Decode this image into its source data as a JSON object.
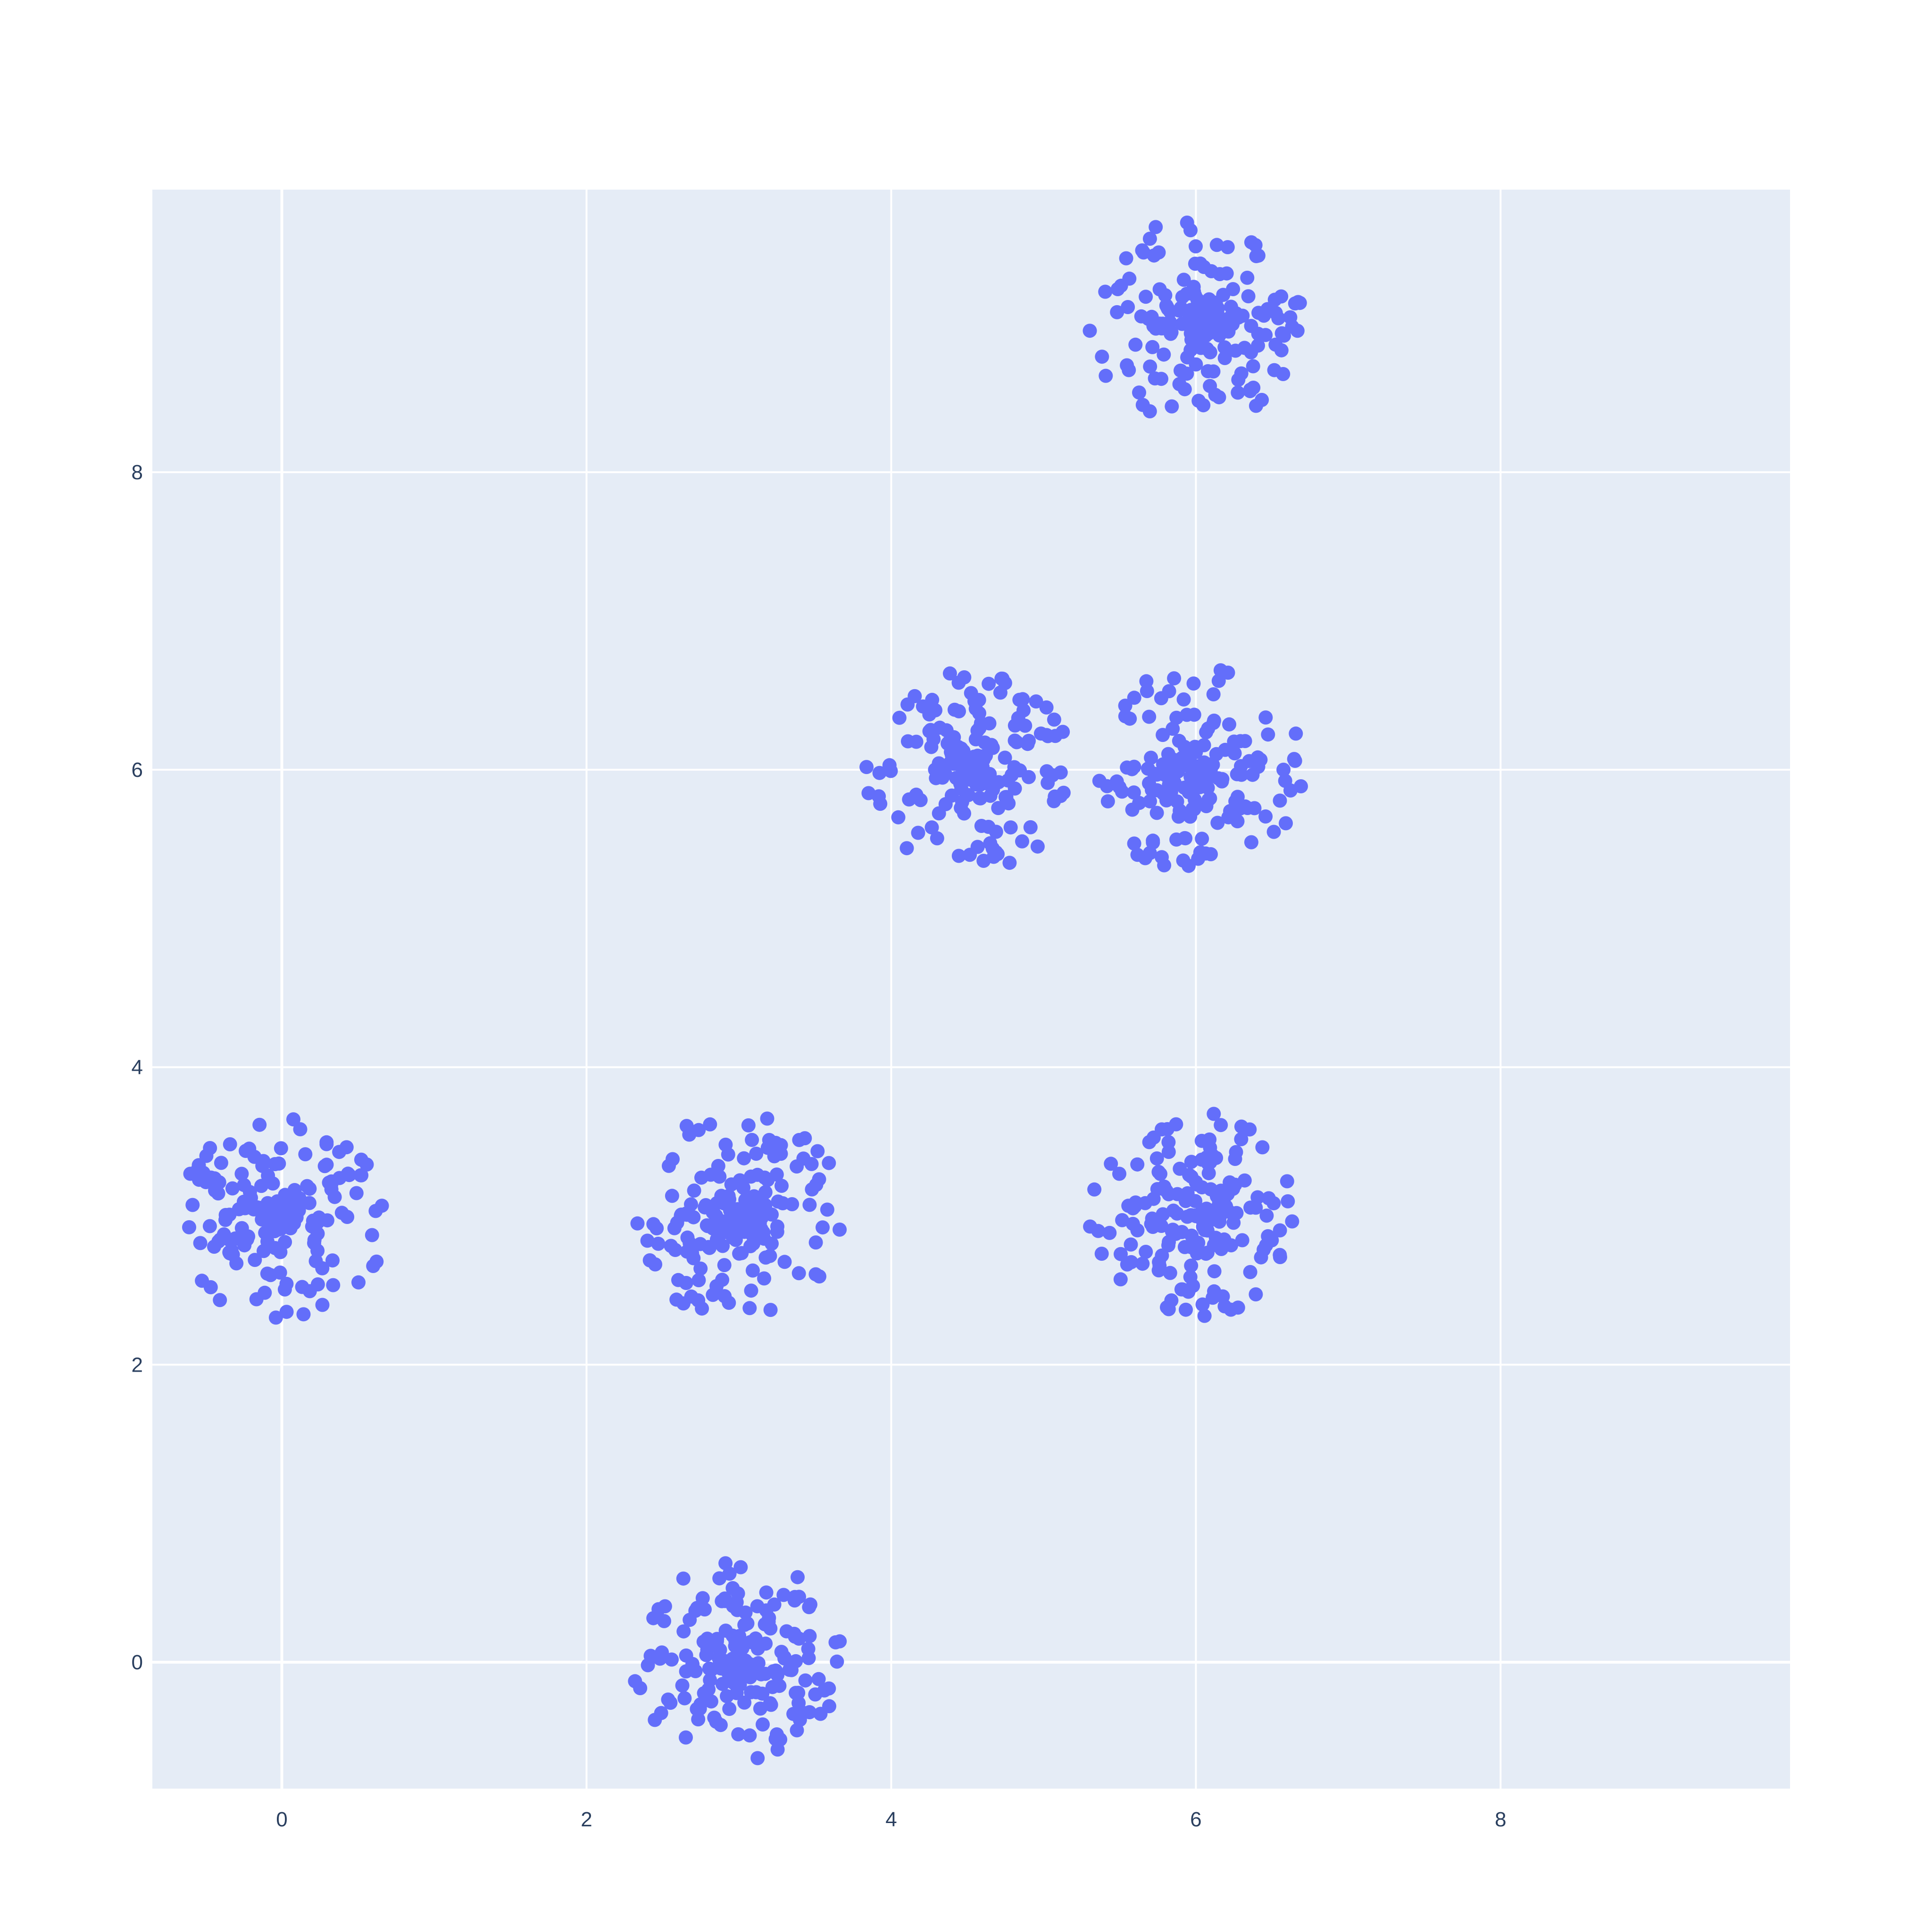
{
  "chart_data": {
    "type": "scatter",
    "title": "",
    "xlabel": "",
    "ylabel": "",
    "xlim": [
      -0.85,
      9.9
    ],
    "ylim": [
      -0.85,
      9.9
    ],
    "xticks": [
      0,
      2,
      4,
      6,
      8
    ],
    "yticks": [
      0,
      2,
      4,
      6,
      8
    ],
    "xtick_labels": [
      "0",
      "2",
      "4",
      "6",
      "8"
    ],
    "ytick_labels": [
      "0",
      "2",
      "4",
      "6",
      "8"
    ],
    "grid": true,
    "legend": "none",
    "colors": {
      "plot_bg": "#e5ecf6",
      "grid": "#ffffff",
      "marker": "#636efa",
      "tick_text": "#2a3f5f"
    },
    "series": [
      {
        "marker": "circle",
        "clusters": [
          {
            "center": [
              0,
              3
            ],
            "radius": 0.7,
            "count": 180,
            "seed": 11
          },
          {
            "center": [
              3,
              3
            ],
            "radius": 0.7,
            "count": 180,
            "seed": 23
          },
          {
            "center": [
              6,
              3
            ],
            "radius": 0.7,
            "count": 180,
            "seed": 37
          },
          {
            "center": [
              3,
              0
            ],
            "radius": 0.7,
            "count": 180,
            "seed": 41
          },
          {
            "center": [
              4.5,
              6
            ],
            "radius": 0.7,
            "count": 180,
            "seed": 53
          },
          {
            "center": [
              6,
              6
            ],
            "radius": 0.7,
            "count": 180,
            "seed": 67
          },
          {
            "center": [
              6,
              9
            ],
            "radius": 0.7,
            "count": 180,
            "seed": 79
          }
        ]
      }
    ]
  }
}
